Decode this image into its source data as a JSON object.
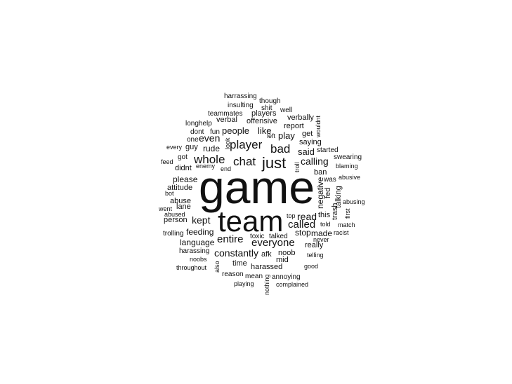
{
  "cloud": {
    "text_color": "#111111",
    "background": "#ffffff",
    "words": [
      {
        "text": "game",
        "weight": 100
      },
      {
        "text": "team",
        "weight": 60
      },
      {
        "text": "just",
        "weight": 30
      },
      {
        "text": "whole",
        "weight": 26
      },
      {
        "text": "player",
        "weight": 26
      },
      {
        "text": "chat",
        "weight": 26
      },
      {
        "text": "bad",
        "weight": 24
      },
      {
        "text": "entire",
        "weight": 24
      },
      {
        "text": "everyone",
        "weight": 24
      },
      {
        "text": "called",
        "weight": 22
      },
      {
        "text": "calling",
        "weight": 22
      },
      {
        "text": "kept",
        "weight": 20
      },
      {
        "text": "constantly",
        "weight": 20
      },
      {
        "text": "read",
        "weight": 18
      },
      {
        "text": "even",
        "weight": 18
      },
      {
        "text": "said",
        "weight": 18
      },
      {
        "text": "play",
        "weight": 18
      },
      {
        "text": "people",
        "weight": 18
      },
      {
        "text": "like",
        "weight": 18
      },
      {
        "text": "negative",
        "weight": 16
      },
      {
        "text": "rude",
        "weight": 16
      },
      {
        "text": "stop",
        "weight": 16
      },
      {
        "text": "made",
        "weight": 16
      },
      {
        "text": "please",
        "weight": 16
      },
      {
        "text": "feeding",
        "weight": 16
      },
      {
        "text": "language",
        "weight": 16
      },
      {
        "text": "attitude",
        "weight": 14
      },
      {
        "text": "abuse",
        "weight": 14
      },
      {
        "text": "person",
        "weight": 14
      },
      {
        "text": "time",
        "weight": 14
      },
      {
        "text": "harassed",
        "weight": 14
      },
      {
        "text": "noob",
        "weight": 14
      },
      {
        "text": "offensive",
        "weight": 14
      },
      {
        "text": "verbal",
        "weight": 14
      },
      {
        "text": "players",
        "weight": 14
      },
      {
        "text": "saying",
        "weight": 14
      },
      {
        "text": "really",
        "weight": 14
      },
      {
        "text": "report",
        "weight": 14
      },
      {
        "text": "ban",
        "weight": 14
      },
      {
        "text": "lane",
        "weight": 14
      },
      {
        "text": "didnt",
        "weight": 14
      },
      {
        "text": "fed",
        "weight": 14
      },
      {
        "text": "afk",
        "weight": 12
      },
      {
        "text": "mid",
        "weight": 12
      },
      {
        "text": "trash",
        "weight": 12
      },
      {
        "text": "talking",
        "weight": 12
      },
      {
        "text": "get",
        "weight": 12
      },
      {
        "text": "this",
        "weight": 12
      },
      {
        "text": "verbally",
        "weight": 12
      },
      {
        "text": "guy",
        "weight": 12
      },
      {
        "text": "one",
        "weight": 12
      },
      {
        "text": "trolling",
        "weight": 11
      },
      {
        "text": "harassing",
        "weight": 11
      },
      {
        "text": "shit",
        "weight": 11
      },
      {
        "text": "teammates",
        "weight": 11
      },
      {
        "text": "insulting",
        "weight": 11
      },
      {
        "text": "harrassing",
        "weight": 10
      },
      {
        "text": "though",
        "weight": 10
      },
      {
        "text": "well",
        "weight": 10
      },
      {
        "text": "wouldnt",
        "weight": 10
      },
      {
        "text": "longhelp",
        "weight": 10
      },
      {
        "text": "dont",
        "weight": 10
      },
      {
        "text": "fun",
        "weight": 10
      },
      {
        "text": "look",
        "weight": 10
      },
      {
        "text": "left",
        "weight": 10
      },
      {
        "text": "every",
        "weight": 10
      },
      {
        "text": "got",
        "weight": 10
      },
      {
        "text": "feed",
        "weight": 10
      },
      {
        "text": "enemy",
        "weight": 10
      },
      {
        "text": "end",
        "weight": 10
      },
      {
        "text": "troll",
        "weight": 10
      },
      {
        "text": "started",
        "weight": 10
      },
      {
        "text": "swearing",
        "weight": 10
      },
      {
        "text": "blaming",
        "weight": 10
      },
      {
        "text": "was",
        "weight": 10
      },
      {
        "text": "abusive",
        "weight": 10
      },
      {
        "text": "bot",
        "weight": 10
      },
      {
        "text": "went",
        "weight": 10
      },
      {
        "text": "abused",
        "weight": 10
      },
      {
        "text": "abusing",
        "weight": 10
      },
      {
        "text": "first",
        "weight": 10
      },
      {
        "text": "top",
        "weight": 10
      },
      {
        "text": "told",
        "weight": 10
      },
      {
        "text": "match",
        "weight": 10
      },
      {
        "text": "racist",
        "weight": 10
      },
      {
        "text": "never",
        "weight": 10
      },
      {
        "text": "toxic",
        "weight": 10
      },
      {
        "text": "talked",
        "weight": 10
      },
      {
        "text": "telling",
        "weight": 10
      },
      {
        "text": "noobs",
        "weight": 10
      },
      {
        "text": "throughout",
        "weight": 10
      },
      {
        "text": "also",
        "weight": 10
      },
      {
        "text": "good",
        "weight": 10
      },
      {
        "text": "reason",
        "weight": 10
      },
      {
        "text": "mean",
        "weight": 10
      },
      {
        "text": "annoying",
        "weight": 10
      },
      {
        "text": "playing",
        "weight": 10
      },
      {
        "text": "nothing",
        "weight": 10
      },
      {
        "text": "complained",
        "weight": 10
      }
    ]
  }
}
